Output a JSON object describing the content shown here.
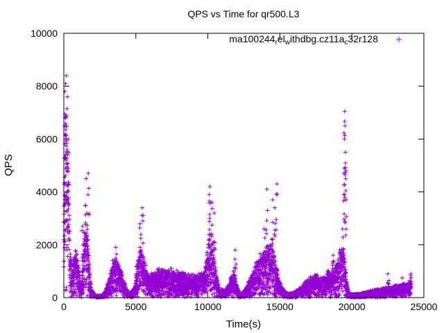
{
  "chart_data": {
    "type": "scatter",
    "title": "QPS vs Time for qr500.L3",
    "xlabel": "Time(s)",
    "ylabel": "QPS",
    "xlim": [
      0,
      25000
    ],
    "ylim": [
      0,
      10000
    ],
    "xticks": [
      0,
      5000,
      10000,
      15000,
      20000,
      25000
    ],
    "yticks": [
      0,
      2000,
      4000,
      6000,
      8000,
      10000
    ],
    "legend_position": "top-right",
    "marker": "+",
    "colors": {
      "series": "#9400d3"
    },
    "legend": {
      "parts": [
        {
          "text": "ma100244",
          "shift": "base"
        },
        {
          "text": "r",
          "shift": "sub"
        },
        {
          "text": "el",
          "shift": "base"
        },
        {
          "text": "w",
          "shift": "sub"
        },
        {
          "text": "ithdbg.cz11a",
          "shift": "base"
        },
        {
          "text": "c",
          "shift": "sub"
        },
        {
          "text": "32r128",
          "shift": "base"
        }
      ]
    },
    "series": [
      {
        "profile": [
          [
            0,
            3000
          ],
          [
            80,
            6500
          ],
          [
            200,
            7200
          ],
          [
            320,
            5000
          ],
          [
            420,
            1600
          ],
          [
            600,
            1100
          ],
          [
            800,
            1800
          ],
          [
            1000,
            1200
          ],
          [
            1200,
            400
          ],
          [
            1400,
            2200
          ],
          [
            1550,
            2800
          ],
          [
            1700,
            1800
          ],
          [
            1900,
            300
          ],
          [
            2200,
            80
          ],
          [
            2600,
            60
          ],
          [
            2900,
            250
          ],
          [
            3200,
            800
          ],
          [
            3450,
            1450
          ],
          [
            3700,
            1300
          ],
          [
            4000,
            900
          ],
          [
            4300,
            350
          ],
          [
            4600,
            150
          ],
          [
            4900,
            400
          ],
          [
            5100,
            1300
          ],
          [
            5300,
            1750
          ],
          [
            5500,
            1500
          ],
          [
            5800,
            900
          ],
          [
            6200,
            850
          ],
          [
            6800,
            1050
          ],
          [
            7400,
            1000
          ],
          [
            8000,
            900
          ],
          [
            8600,
            850
          ],
          [
            9200,
            800
          ],
          [
            9700,
            900
          ],
          [
            10000,
            1800
          ],
          [
            10200,
            2600
          ],
          [
            10400,
            1700
          ],
          [
            10600,
            900
          ],
          [
            10800,
            300
          ],
          [
            11200,
            250
          ],
          [
            11600,
            700
          ],
          [
            11800,
            1000
          ],
          [
            12000,
            400
          ],
          [
            12300,
            100
          ],
          [
            12700,
            400
          ],
          [
            13100,
            900
          ],
          [
            13500,
            1400
          ],
          [
            13900,
            1700
          ],
          [
            14200,
            2000
          ],
          [
            14500,
            1800
          ],
          [
            14800,
            1000
          ],
          [
            15100,
            400
          ],
          [
            15500,
            150
          ],
          [
            15900,
            180
          ],
          [
            16300,
            300
          ],
          [
            16700,
            500
          ],
          [
            17100,
            700
          ],
          [
            17500,
            800
          ],
          [
            17900,
            700
          ],
          [
            18300,
            900
          ],
          [
            18700,
            1000
          ],
          [
            19000,
            1200
          ],
          [
            19200,
            1800
          ],
          [
            19400,
            2000
          ],
          [
            19600,
            700
          ],
          [
            19800,
            150
          ],
          [
            20200,
            120
          ],
          [
            20600,
            150
          ],
          [
            21000,
            200
          ],
          [
            21400,
            250
          ],
          [
            21800,
            300
          ],
          [
            22200,
            350
          ],
          [
            22600,
            400
          ],
          [
            23000,
            420
          ],
          [
            23400,
            450
          ],
          [
            23800,
            500
          ],
          [
            24100,
            600
          ]
        ],
        "spikes": [
          [
            80,
            7800
          ],
          [
            120,
            8100
          ],
          [
            180,
            8400
          ],
          [
            250,
            7600
          ],
          [
            300,
            6000
          ],
          [
            220,
            4800
          ],
          [
            150,
            5200
          ],
          [
            60,
            3500
          ],
          [
            1550,
            4500
          ],
          [
            1700,
            4700
          ],
          [
            1600,
            3200
          ],
          [
            1300,
            2700
          ],
          [
            3600,
            1900
          ],
          [
            5450,
            3400
          ],
          [
            5300,
            2800
          ],
          [
            10150,
            4200
          ],
          [
            10100,
            3900
          ],
          [
            10300,
            3600
          ],
          [
            10450,
            3200
          ],
          [
            11900,
            1800
          ],
          [
            14100,
            4100
          ],
          [
            14500,
            3700
          ],
          [
            14800,
            4300
          ],
          [
            14650,
            3400
          ],
          [
            13900,
            2600
          ],
          [
            19500,
            7050
          ],
          [
            19520,
            6500
          ],
          [
            19480,
            6000
          ],
          [
            19550,
            5500
          ],
          [
            19450,
            4700
          ],
          [
            19600,
            3700
          ],
          [
            19350,
            2600
          ],
          [
            18700,
            1600
          ],
          [
            22500,
            900
          ],
          [
            23500,
            750
          ],
          [
            24100,
            900
          ]
        ]
      }
    ]
  }
}
